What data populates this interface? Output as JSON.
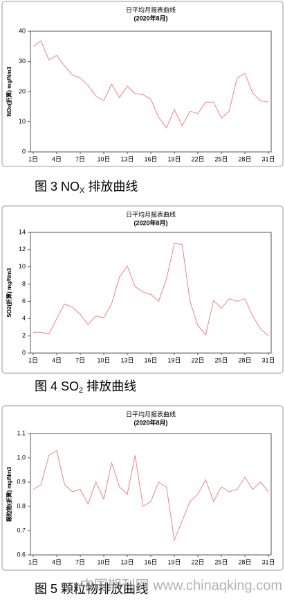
{
  "chart_data": [
    {
      "type": "line",
      "title": "日平均月报表曲线",
      "subtitle": "(2020年8月)",
      "y_label": "NOx(折算) mg/Nm3",
      "categories": [
        "1日",
        null,
        null,
        "4日",
        null,
        null,
        "7日",
        null,
        null,
        "10日",
        null,
        null,
        "13日",
        null,
        null,
        "16日",
        null,
        null,
        "19日",
        null,
        null,
        "22日",
        null,
        null,
        "25日",
        null,
        null,
        "28日",
        null,
        null,
        "31日"
      ],
      "series": [
        {
          "color": "#f08080",
          "values": [
            35,
            36.8,
            30.5,
            32,
            28.5,
            25.5,
            24.5,
            22,
            18.5,
            17,
            22.5,
            18,
            21.8,
            19.3,
            19,
            17.5,
            11.5,
            8,
            14,
            8.7,
            13.5,
            12.7,
            16.5,
            16.5,
            11.2,
            13.5,
            24.5,
            26,
            19.5,
            17,
            16.5
          ]
        }
      ],
      "ylim": [
        0,
        40
      ],
      "yticks": [
        0,
        10,
        20,
        30,
        40
      ]
    },
    {
      "type": "line",
      "title": "日平均月报表曲线",
      "subtitle": "(2020年8月)",
      "y_label": "SO2(折算) mg/Nm3",
      "categories": [
        "1日",
        null,
        null,
        "4日",
        null,
        null,
        "7日",
        null,
        null,
        "10日",
        null,
        null,
        "13日",
        null,
        null,
        "16日",
        null,
        null,
        "19日",
        null,
        null,
        "22日",
        null,
        null,
        "25日",
        null,
        null,
        "28日",
        null,
        null,
        "31日"
      ],
      "series": [
        {
          "color": "#f08080",
          "values": [
            2.4,
            2.4,
            2.2,
            4,
            5.7,
            5.3,
            4.5,
            3.3,
            4.3,
            4.1,
            5.7,
            8.8,
            10.1,
            7.7,
            7.1,
            6.8,
            6,
            8.6,
            12.7,
            12.6,
            6,
            3.2,
            2.1,
            6.1,
            5.2,
            6.3,
            6,
            6.3,
            4.3,
            2.8,
            2
          ]
        }
      ],
      "ylim": [
        0,
        14
      ],
      "yticks": [
        0,
        2,
        4,
        6,
        8,
        10,
        12,
        14
      ]
    },
    {
      "type": "line",
      "title": "日平均月报表曲线",
      "subtitle": "(2020年8月)",
      "y_label": "颗粒物(折算) mg/Nm3",
      "categories": [
        "1日",
        null,
        null,
        "4日",
        null,
        null,
        "7日",
        null,
        null,
        "10日",
        null,
        null,
        "13日",
        null,
        null,
        "16日",
        null,
        null,
        "19日",
        null,
        null,
        "22日",
        null,
        null,
        "25日",
        null,
        null,
        "28日",
        null,
        null,
        "31日"
      ],
      "series": [
        {
          "color": "#f08080",
          "values": [
            0.87,
            0.89,
            1.01,
            1.03,
            0.89,
            0.86,
            0.87,
            0.81,
            0.9,
            0.83,
            0.98,
            0.88,
            0.85,
            1.01,
            0.8,
            0.82,
            0.9,
            0.88,
            0.66,
            0.74,
            0.82,
            0.85,
            0.91,
            0.82,
            0.88,
            0.86,
            0.87,
            0.92,
            0.87,
            0.9,
            0.86
          ]
        }
      ],
      "ylim": [
        0.6,
        1.1
      ],
      "yticks": [
        0.6,
        0.7,
        0.8,
        0.9,
        {
          "value": 1,
          "label": "1.0"
        },
        1.1
      ]
    }
  ],
  "captions": [
    {
      "prefix": "图 3 NO",
      "sub": "X",
      "suffix": " 排放曲线"
    },
    {
      "prefix": "图 4 SO",
      "sub": "2",
      "suffix": " 排放曲线"
    },
    {
      "prefix": "图 5  颗粒物排放曲线",
      "sub": "",
      "suffix": ""
    }
  ],
  "watermark": "中国期刊网 www.chinaqking.com"
}
